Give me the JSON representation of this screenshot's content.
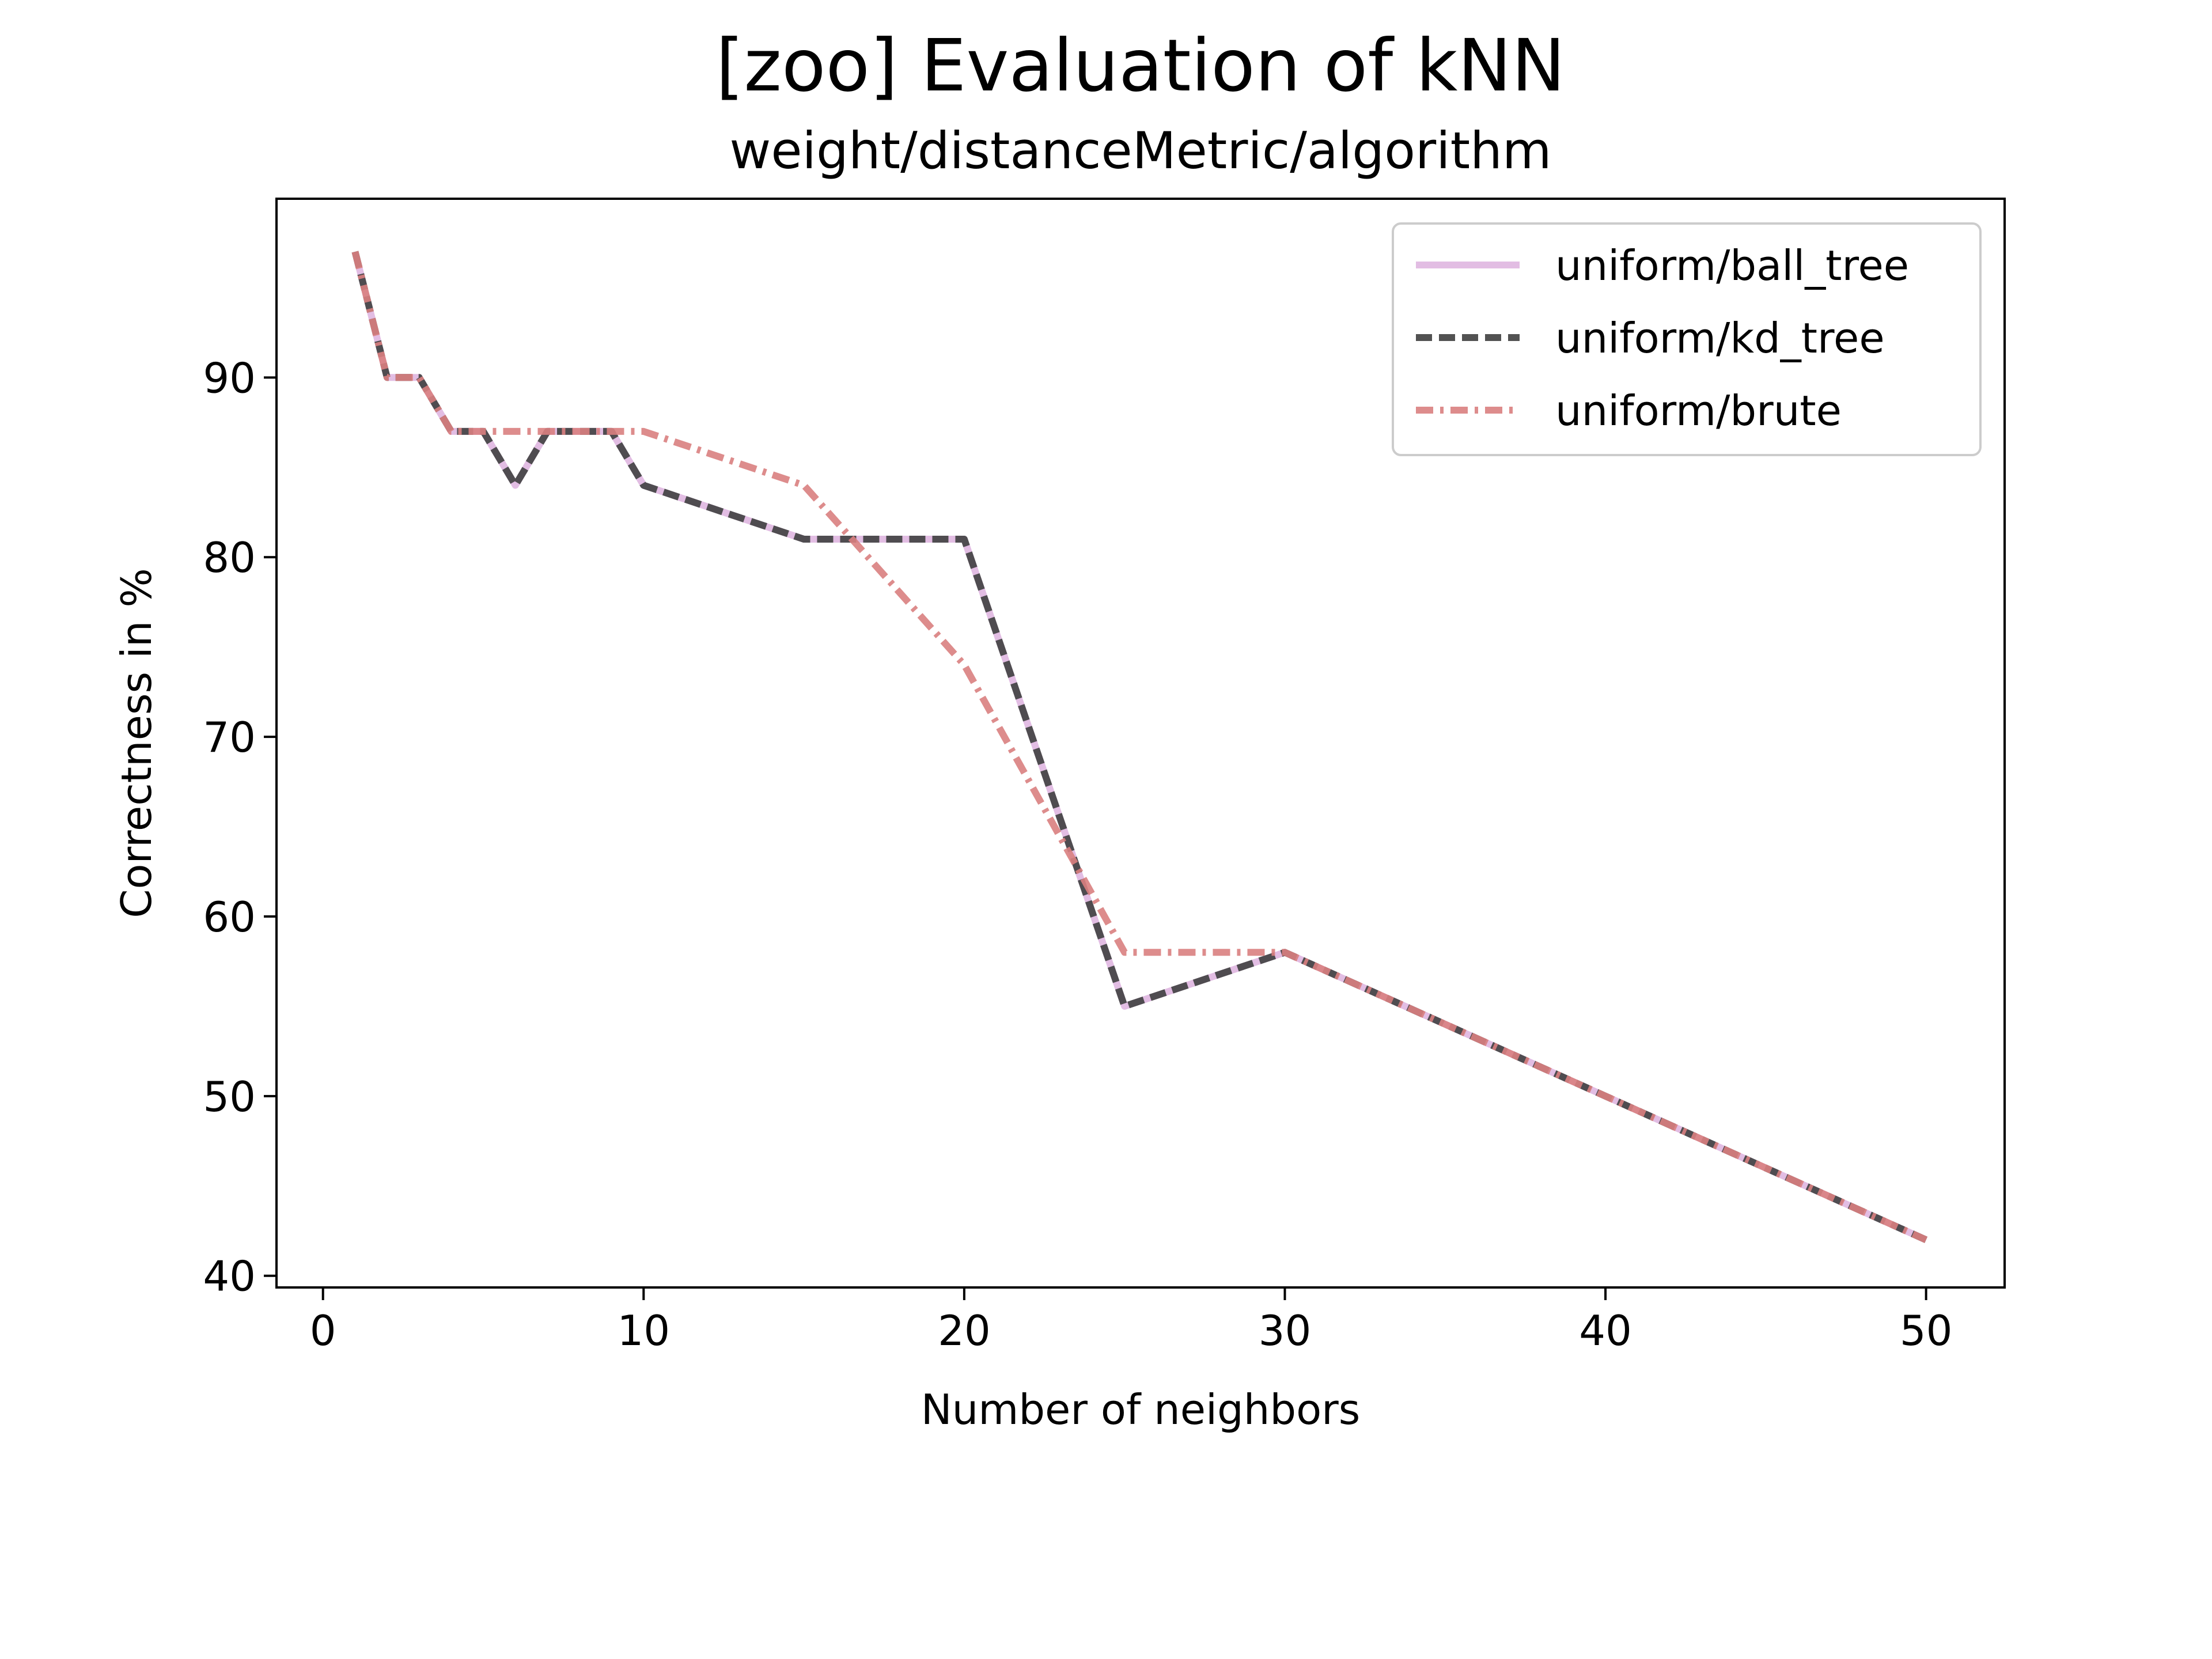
{
  "chart_data": {
    "type": "line",
    "title": "[zoo] Evaluation of kNN",
    "subtitle": "weight/distanceMetric/algorithm",
    "xlabel": "Number of neighbors",
    "ylabel": "Correctness in %",
    "xlim": [
      -1.45,
      52.45
    ],
    "ylim": [
      39.35,
      99.95
    ],
    "xticks": [
      0,
      10,
      20,
      30,
      40,
      50
    ],
    "yticks": [
      40,
      50,
      60,
      70,
      80,
      90
    ],
    "grid": false,
    "legend_position": "top-right",
    "series": [
      {
        "name": "uniform/ball_tree",
        "color": "#dfb6e0",
        "linestyle": "solid",
        "x": [
          1,
          2,
          3,
          4,
          5,
          6,
          7,
          8,
          9,
          10,
          15,
          20,
          25,
          30,
          50
        ],
        "y": [
          97,
          90,
          90,
          87,
          87,
          84,
          87,
          87,
          87,
          84,
          81,
          81,
          55,
          58,
          42
        ]
      },
      {
        "name": "uniform/kd_tree",
        "color": "#3f3f3f",
        "linestyle": "dashed",
        "x": [
          1,
          2,
          3,
          4,
          5,
          6,
          7,
          8,
          9,
          10,
          15,
          20,
          25,
          30,
          50
        ],
        "y": [
          97,
          90,
          90,
          87,
          87,
          84,
          87,
          87,
          87,
          84,
          81,
          81,
          55,
          58,
          42
        ]
      },
      {
        "name": "uniform/brute",
        "color": "#d98080",
        "linestyle": "dashdot",
        "x": [
          1,
          2,
          3,
          4,
          5,
          6,
          7,
          8,
          9,
          10,
          15,
          20,
          25,
          30,
          50
        ],
        "y": [
          97,
          90,
          90,
          87,
          87,
          87,
          87,
          87,
          87,
          87,
          84,
          74,
          58,
          58,
          42
        ]
      }
    ]
  }
}
